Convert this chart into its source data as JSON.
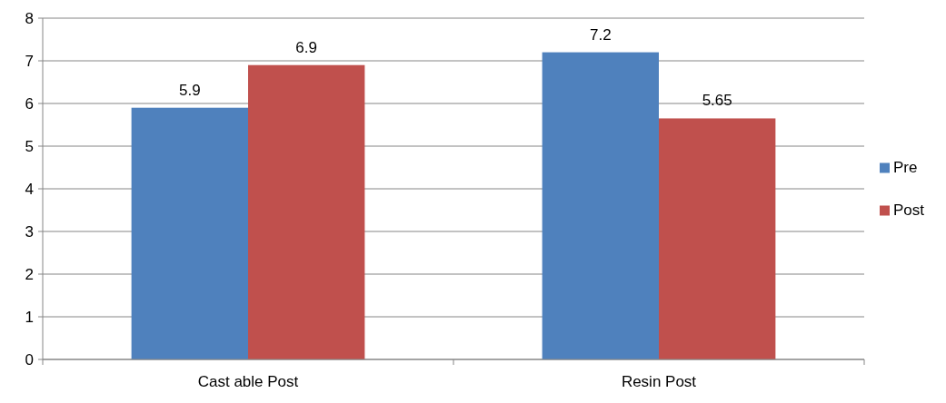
{
  "chart_data": {
    "type": "bar",
    "categories": [
      "Cast able Post",
      "Resin Post"
    ],
    "series": [
      {
        "name": "Pre",
        "color": "#4f81bd",
        "values": [
          5.9,
          7.2
        ]
      },
      {
        "name": "Post",
        "color": "#c0504d",
        "values": [
          6.9,
          5.65
        ]
      }
    ],
    "ylim": [
      0,
      8
    ],
    "yticks": [
      0,
      1,
      2,
      3,
      4,
      5,
      6,
      7,
      8
    ],
    "grid": "y",
    "legend": "right",
    "data_labels": true
  }
}
